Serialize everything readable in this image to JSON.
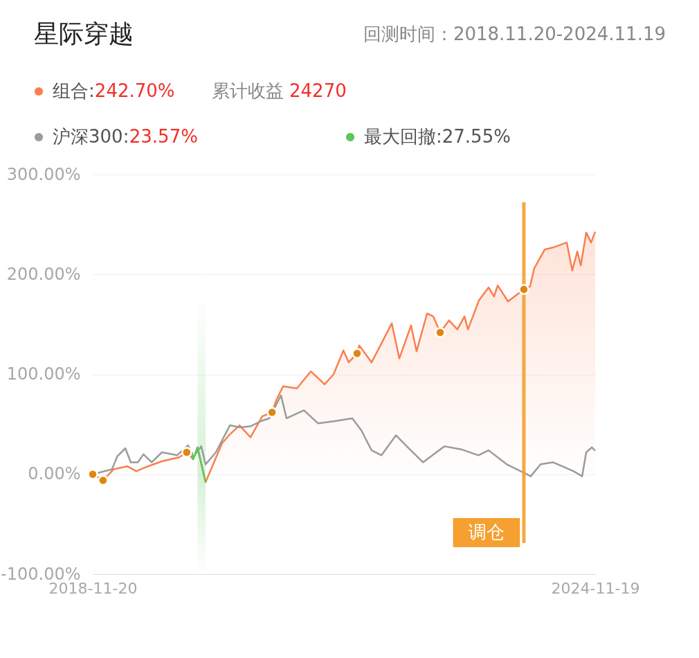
{
  "chart_data": {
    "type": "line",
    "title": "星际穿越",
    "subtitle": "回测时间：2018.11.20-2024.11.19",
    "annotations": [
      "242.70%",
      "累计收益",
      "24270",
      "23.57%"
    ],
    "legend": "top",
    "grid": "y",
    "xlim": [
      "2018-11-20",
      "2024-11-19"
    ],
    "xticks": [
      "2018-11-20",
      "2024-11-19"
    ],
    "ylim": [
      -100,
      300
    ],
    "yticks": [
      {
        "value": -100,
        "label": "-100.00%"
      },
      {
        "value": 0,
        "label": "0.00%"
      },
      {
        "value": 100,
        "label": "100.00%"
      },
      {
        "value": 200,
        "label": "200.00%"
      },
      {
        "value": 300,
        "label": "300.00%"
      }
    ],
    "ref_lines": [
      {
        "axis": "x",
        "value": "2024-01-13",
        "label": "调仓",
        "color": "#f5a030"
      }
    ],
    "bands": [
      {
        "axis": "x",
        "from": "2020-02-20",
        "to": "2020-03-26",
        "color": "#5ac85a"
      }
    ],
    "series": [
      {
        "name": "组合:",
        "type": "area",
        "color": "#fa7f4f",
        "x": [
          "2018-11-20",
          "2019-01-04",
          "2019-02-19",
          "2019-04-20",
          "2019-05-29",
          "2019-07-19",
          "2019-09-18",
          "2019-12-02",
          "2020-01-04",
          "2020-02-01",
          "2020-02-20",
          "2020-03-26",
          "2020-06-06",
          "2020-07-10",
          "2020-08-21",
          "2020-10-08",
          "2020-11-28",
          "2021-01-10",
          "2021-01-28",
          "2021-02-27",
          "2021-04-28",
          "2021-06-28",
          "2021-08-27",
          "2021-10-05",
          "2021-11-17",
          "2021-12-10",
          "2022-01-16",
          "2022-01-25",
          "2022-03-20",
          "2022-06-16",
          "2022-07-19",
          "2022-09-08",
          "2022-10-02",
          "2022-11-17",
          "2022-12-14",
          "2023-01-13",
          "2023-02-21",
          "2023-03-29",
          "2023-04-29",
          "2023-05-14",
          "2023-07-01",
          "2023-08-12",
          "2023-09-05",
          "2023-09-21",
          "2023-11-05",
          "2023-12-20",
          "2024-01-13",
          "2024-02-09",
          "2024-02-27",
          "2024-04-13",
          "2024-05-19",
          "2024-07-18",
          "2024-08-11",
          "2024-09-02",
          "2024-09-17",
          "2024-10-11",
          "2024-11-01",
          "2024-11-19"
        ],
        "values": [
          0,
          -6,
          5,
          8,
          3,
          8,
          13,
          17,
          22,
          15,
          27,
          -8,
          31,
          40,
          49,
          37,
          58,
          62,
          74,
          88,
          86,
          103,
          90,
          100,
          124,
          112,
          121,
          129,
          112,
          151,
          116,
          149,
          123,
          161,
          158,
          142,
          154,
          145,
          158,
          145,
          174,
          187,
          178,
          189,
          173,
          181,
          185,
          188,
          206,
          225,
          227,
          232,
          204,
          223,
          209,
          242,
          232,
          242.7
        ]
      },
      {
        "name": "沪深300:",
        "color": "#9b9b9b",
        "x": [
          "2018-11-20",
          "2019-02-12",
          "2019-03-07",
          "2019-04-11",
          "2019-05-05",
          "2019-06-05",
          "2019-06-29",
          "2019-08-04",
          "2019-09-18",
          "2019-11-23",
          "2020-01-10",
          "2020-02-01",
          "2020-03-07",
          "2020-03-26",
          "2020-05-10",
          "2020-07-10",
          "2020-08-21",
          "2020-10-08",
          "2020-11-20",
          "2020-12-29",
          "2021-02-18",
          "2021-03-14",
          "2021-05-29",
          "2021-07-29",
          "2021-10-05",
          "2021-12-26",
          "2022-02-03",
          "2022-03-20",
          "2022-05-02",
          "2022-07-04",
          "2022-08-25",
          "2022-10-30",
          "2023-02-01",
          "2023-04-14",
          "2023-06-29",
          "2023-08-12",
          "2023-10-30",
          "2024-02-12",
          "2024-03-26",
          "2024-05-19",
          "2024-08-17",
          "2024-09-23",
          "2024-10-11",
          "2024-11-05",
          "2024-11-19"
        ],
        "values": [
          0,
          5,
          18,
          26,
          12,
          12,
          20,
          12,
          22,
          19,
          29,
          17,
          28,
          10,
          22,
          49,
          47,
          48,
          53,
          56,
          79,
          56,
          64,
          51,
          53,
          56,
          44,
          24,
          19,
          39,
          27,
          12,
          28,
          25,
          19,
          24,
          10,
          -2,
          10,
          12,
          3,
          -2,
          22,
          27,
          23.57
        ]
      },
      {
        "name": "最大回撤:27.55%",
        "color": "#5ac85a",
        "x": [
          "2020-01-27",
          "2020-02-01",
          "2020-02-20",
          "2020-03-26"
        ],
        "values": [
          22,
          15,
          27,
          -8
        ]
      },
      {
        "type": "scatter",
        "color": "#e0860f",
        "x": [
          "2018-11-20",
          "2019-01-04",
          "2020-01-04",
          "2021-01-10",
          "2022-01-16",
          "2023-01-13",
          "2024-01-13"
        ],
        "values": [
          0,
          -6,
          22,
          62,
          121,
          142,
          185
        ]
      }
    ]
  }
}
